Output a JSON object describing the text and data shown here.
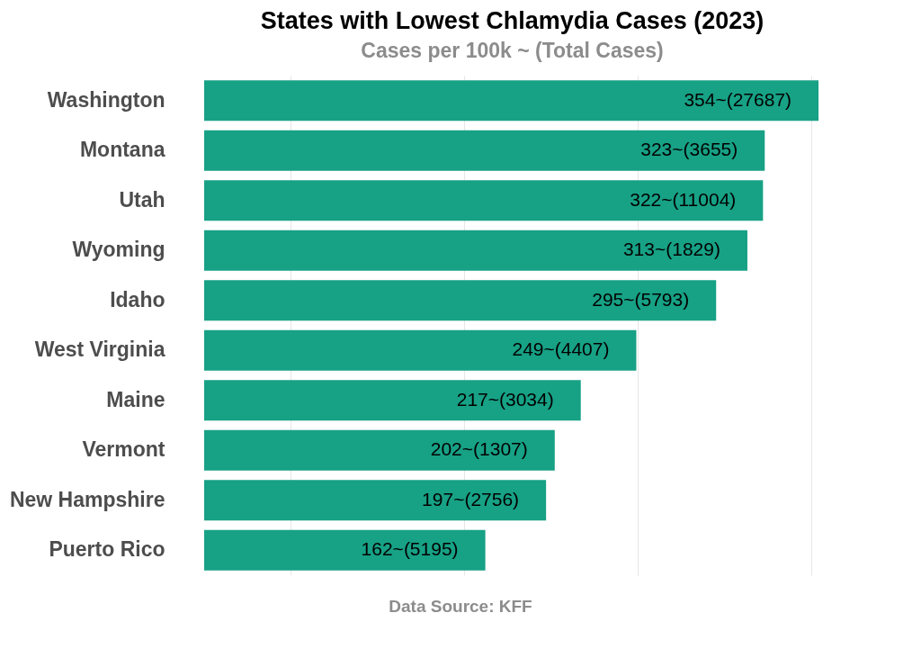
{
  "chart_data": {
    "type": "bar",
    "orientation": "horizontal",
    "title": "States with Lowest Chlamydia Cases (2023)",
    "subtitle": "Cases per 100k ~ (Total Cases)",
    "categories": [
      "Washington",
      "Montana",
      "Utah",
      "Wyoming",
      "Idaho",
      "West Virginia",
      "Maine",
      "Vermont",
      "New Hampshire",
      "Puerto Rico"
    ],
    "values": [
      354,
      323,
      322,
      313,
      295,
      249,
      217,
      202,
      197,
      162
    ],
    "value_labels": [
      "354~(27687)",
      "323~(3655)",
      "322~(11004)",
      "313~(1829)",
      "295~(5793)",
      "249~(4407)",
      "217~(3034)",
      "202~(1307)",
      "197~(2756)",
      "162~(5195)"
    ],
    "color": "#17a185",
    "xlim": [
      0,
      355
    ],
    "xticks": [
      {
        "value": 50,
        "label": null
      },
      {
        "value": 150,
        "label": null
      },
      {
        "value": 250,
        "label": null
      },
      {
        "value": 350,
        "label": null
      }
    ],
    "grid": "x",
    "tick_labels": "y",
    "annotations": [
      "Data Source: KFF"
    ]
  }
}
